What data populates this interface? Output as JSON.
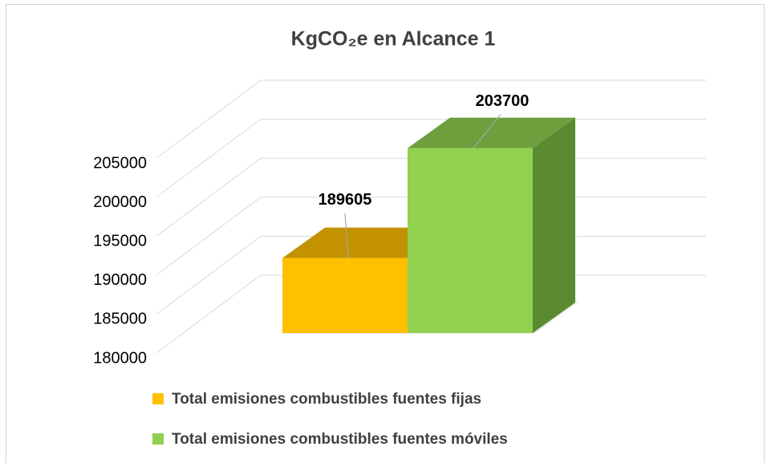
{
  "chart_data": {
    "type": "bar3d",
    "title": "KgCO₂e en Alcance 1",
    "categories": [
      null
    ],
    "series": [
      {
        "name": "Total emisiones combustibles fuentes fijas",
        "color": "#FFC000",
        "top_color": "#C39200",
        "side_color": "#B08400",
        "values": [
          189605
        ]
      },
      {
        "name": "Total emisiones combustibles fuentes móviles",
        "color": "#92D050",
        "top_color": "#6F9E3D",
        "side_color": "#5A8A32",
        "values": [
          203700
        ]
      }
    ],
    "ylim": [
      180000,
      205000
    ],
    "yticks": [
      180000,
      185000,
      190000,
      195000,
      200000,
      205000
    ],
    "grid": true,
    "legend": "bottom"
  }
}
